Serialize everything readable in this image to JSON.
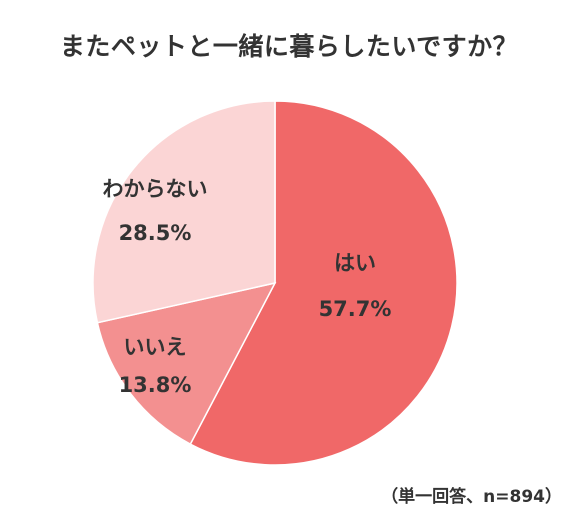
{
  "chart_data": {
    "type": "pie",
    "title": "またペットと一緒に暮らしたいですか？",
    "slices": [
      {
        "label": "はい",
        "value": 57.7,
        "value_text": "57.7%",
        "color": "#F06868"
      },
      {
        "label": "いいえ",
        "value": 13.8,
        "value_text": "13.8%",
        "color": "#F39090"
      },
      {
        "label": "わからない",
        "value": 28.5,
        "value_text": "28.5%",
        "color": "#FBD5D5"
      }
    ],
    "legend": "none",
    "note": "（単一回答、n=894）"
  }
}
